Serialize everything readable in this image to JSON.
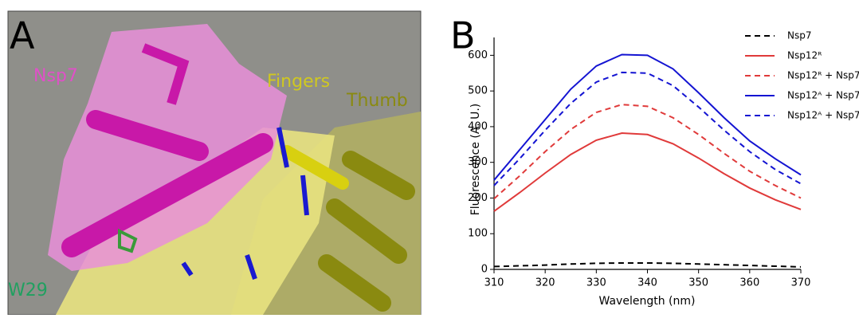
{
  "panel_a": {
    "label": "A",
    "annotations": [
      "Nsp7",
      "Fingers",
      "Thumb",
      "W29"
    ]
  },
  "chart_data": {
    "type": "line",
    "panel_label": "B",
    "x_label": "Wavelength (nm)",
    "y_label": "Fluorescence (A. U.)",
    "x": [
      310,
      315,
      320,
      325,
      330,
      335,
      340,
      345,
      350,
      355,
      360,
      365,
      370
    ],
    "series": [
      {
        "name": "Nsp7",
        "color": "#000000",
        "dash": true,
        "values": [
          8,
          10,
          12,
          15,
          17,
          18,
          18,
          17,
          15,
          13,
          11,
          9,
          7
        ]
      },
      {
        "name": "Nsp12ᴿ",
        "color": "#e03a3a",
        "dash": false,
        "values": [
          163,
          215,
          270,
          322,
          362,
          382,
          378,
          352,
          312,
          268,
          228,
          195,
          168
        ]
      },
      {
        "name": "Nsp12ᴿ + Nsp7",
        "color": "#e03a3a",
        "dash": true,
        "values": [
          198,
          262,
          330,
          392,
          440,
          462,
          457,
          425,
          378,
          325,
          275,
          235,
          200
        ]
      },
      {
        "name": "Nsp12ᴬ + Nsp7",
        "color": "#1414d2",
        "dash": false,
        "values": [
          250,
          335,
          420,
          505,
          570,
          602,
          600,
          562,
          495,
          425,
          360,
          310,
          265
        ]
      },
      {
        "name": "Nsp12ᴬ + Nsp7",
        "color": "#1414d2",
        "dash": true,
        "values": [
          235,
          310,
          390,
          465,
          525,
          552,
          550,
          515,
          455,
          390,
          330,
          280,
          240
        ]
      }
    ],
    "xlim": [
      310,
      370
    ],
    "xticks": [
      310,
      320,
      330,
      340,
      350,
      360,
      370
    ],
    "ylim": [
      0,
      650
    ],
    "yticks": [
      0,
      100,
      200,
      300,
      400,
      500,
      600
    ],
    "legend": "upper right"
  }
}
